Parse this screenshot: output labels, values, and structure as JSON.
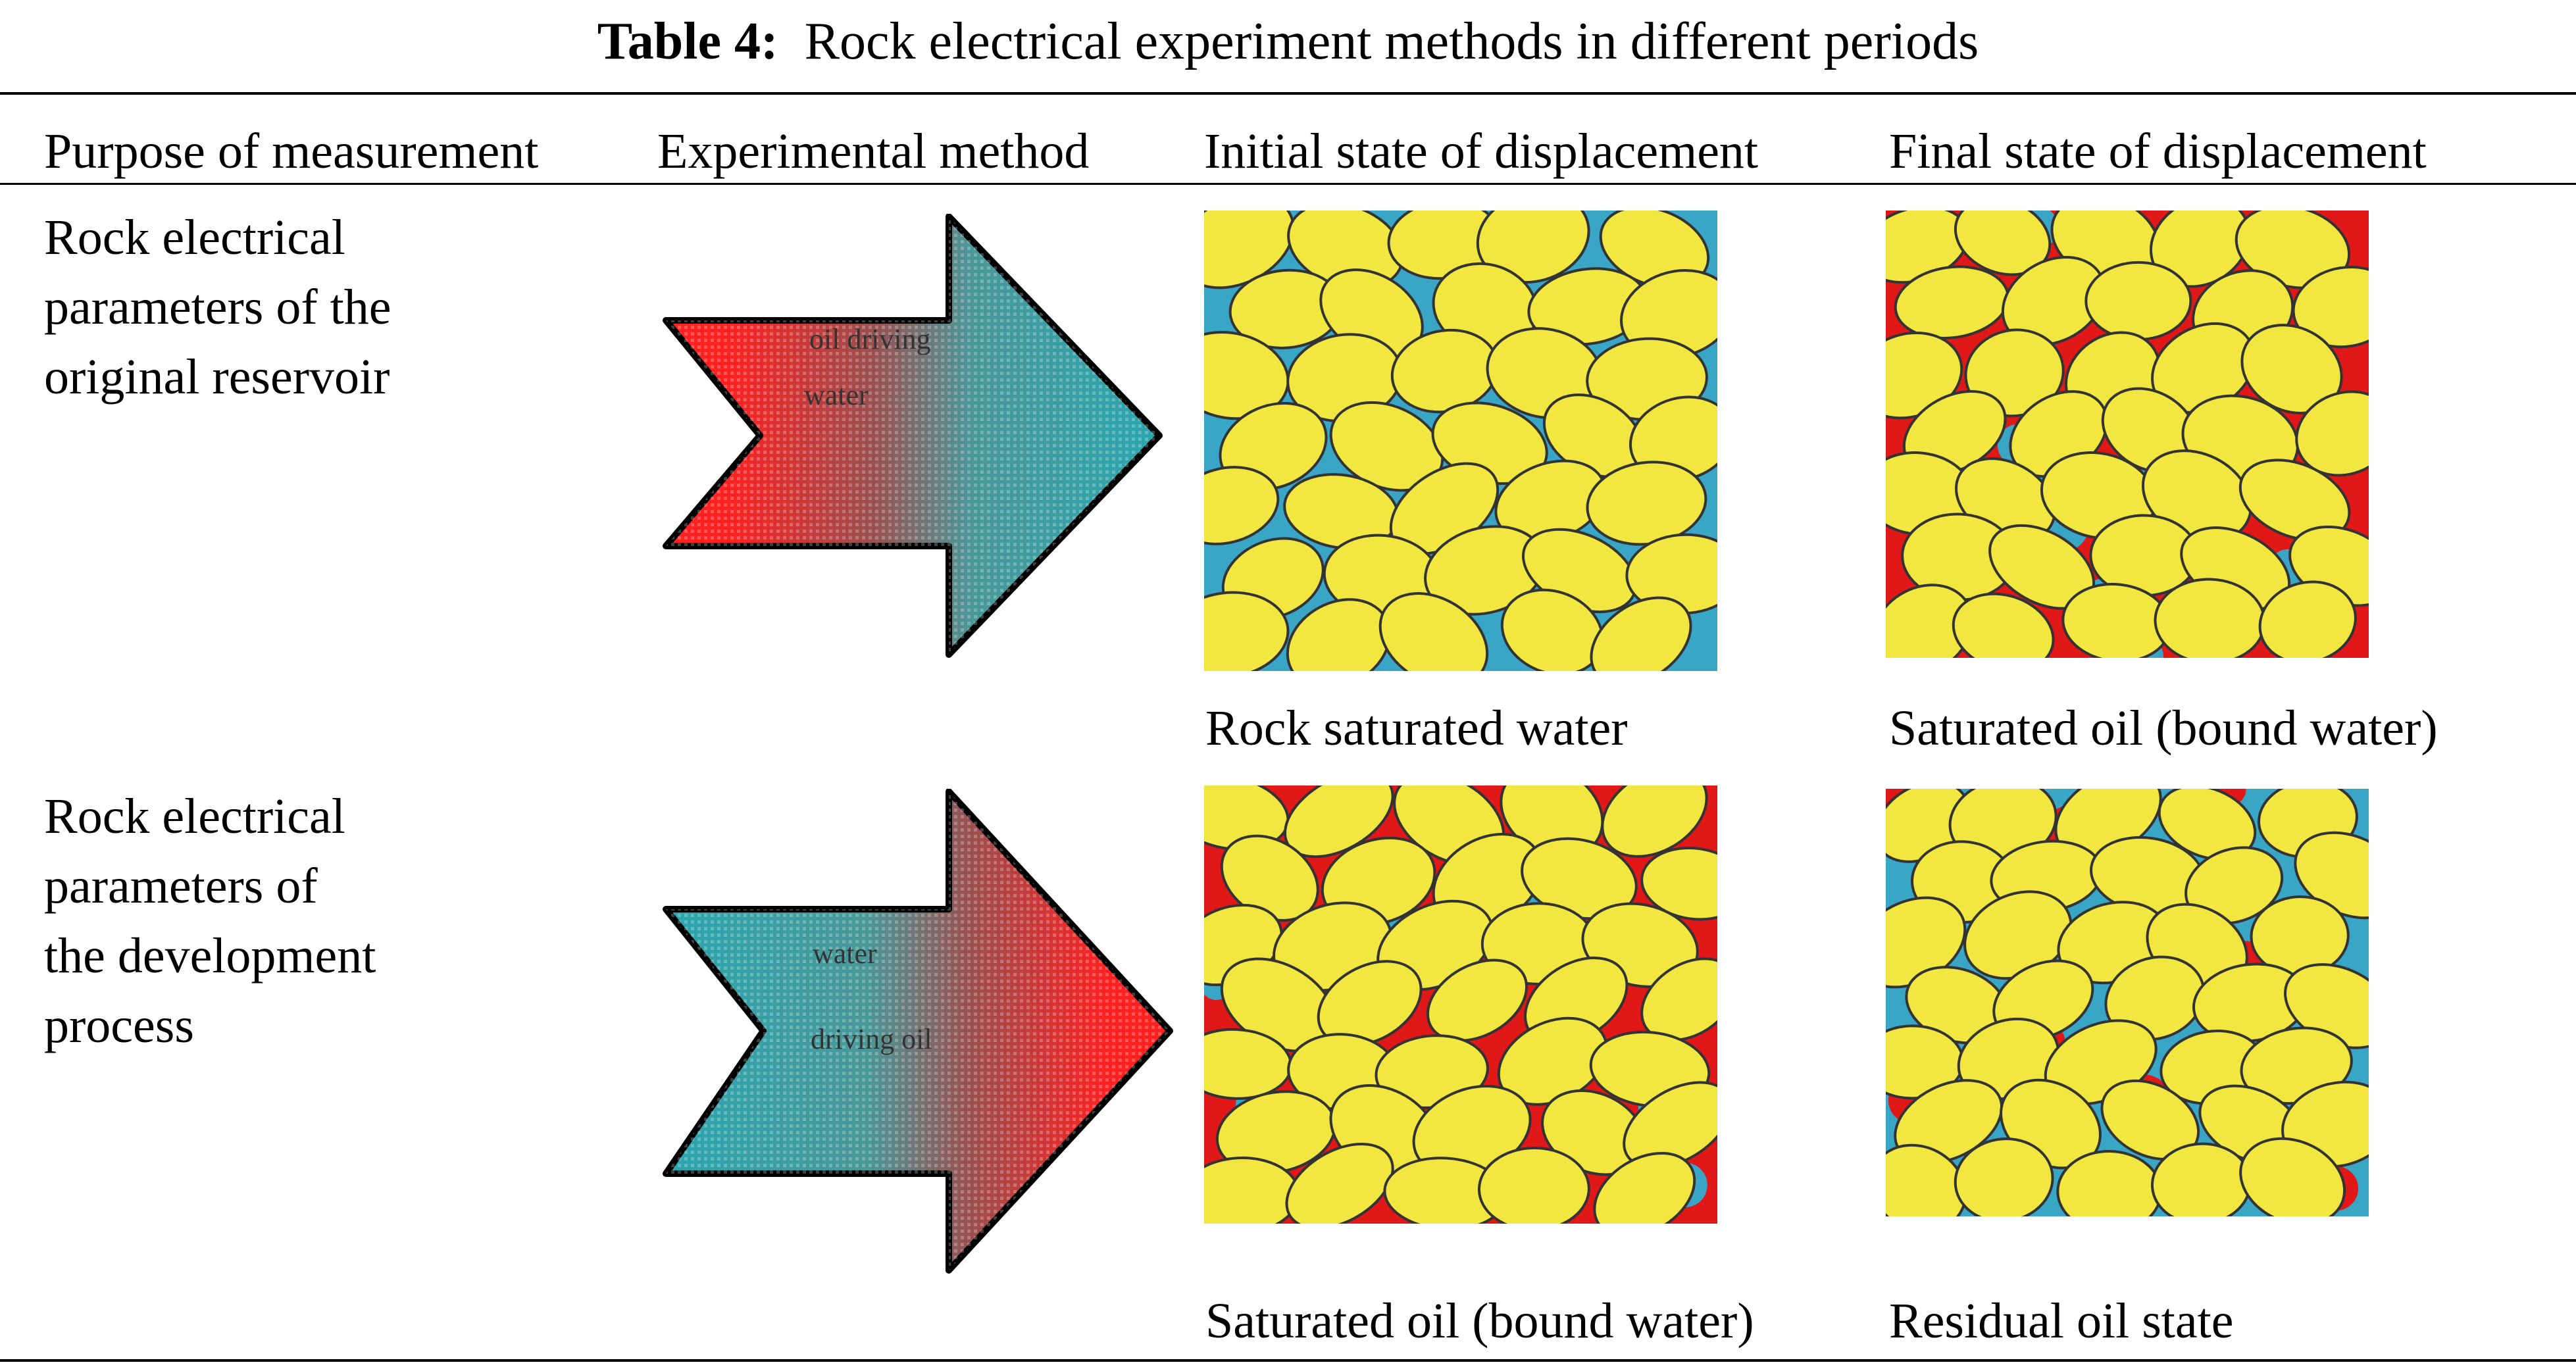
{
  "title": {
    "label": "Table 4:",
    "text": "Rock electrical experiment methods in different periods"
  },
  "columns": [
    "Purpose of measurement",
    "Experimental method",
    "Initial state of displacement",
    "Final state of displacement"
  ],
  "rows": [
    {
      "purpose": [
        "Rock electrical",
        "parameters of the",
        "original reservoir"
      ],
      "method": {
        "arrow_text": [
          "oil driving",
          "water"
        ],
        "from_color": "#ff2020",
        "to_color": "#2aa6a6"
      },
      "initial_caption": "Rock saturated water",
      "final_caption": "Saturated oil (bound water)"
    },
    {
      "purpose": [
        "Rock electrical",
        "parameters of",
        "the development",
        "process"
      ],
      "method": {
        "arrow_text": [
          "water",
          "driving oil"
        ],
        "from_color": "#2aa6a6",
        "to_color": "#ff2020"
      },
      "initial_caption": "Saturated oil (bound water)",
      "final_caption": "Residual oil state"
    }
  ],
  "colors": {
    "grain": "#f2e640",
    "water": "#3aa6c6",
    "oil": "#e01818"
  }
}
